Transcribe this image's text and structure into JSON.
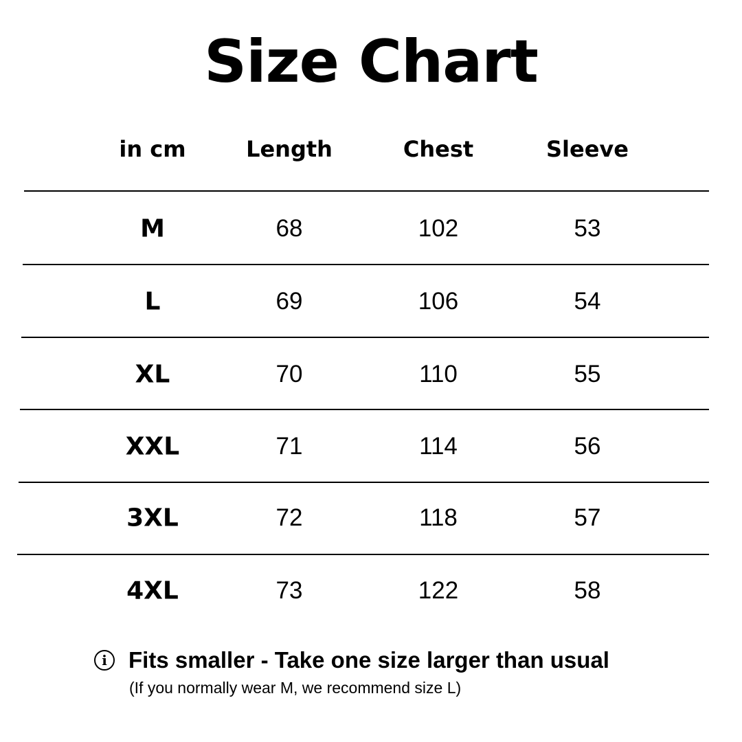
{
  "title": "Size Chart",
  "table": {
    "headers": [
      "in cm",
      "Length",
      "Chest",
      "Sleeve"
    ],
    "rows": [
      [
        "M",
        "68",
        "102",
        "53"
      ],
      [
        "L",
        "69",
        "106",
        "54"
      ],
      [
        "XL",
        "70",
        "110",
        "55"
      ],
      [
        "XXL",
        "71",
        "114",
        "56"
      ],
      [
        "3XL",
        "72",
        "118",
        "57"
      ],
      [
        "4XL",
        "73",
        "122",
        "58"
      ]
    ]
  },
  "note": {
    "icon": "info-icon",
    "headline": "Fits smaller - Take one size larger than usual",
    "detail": "(If you normally wear M, we recommend size L)"
  }
}
